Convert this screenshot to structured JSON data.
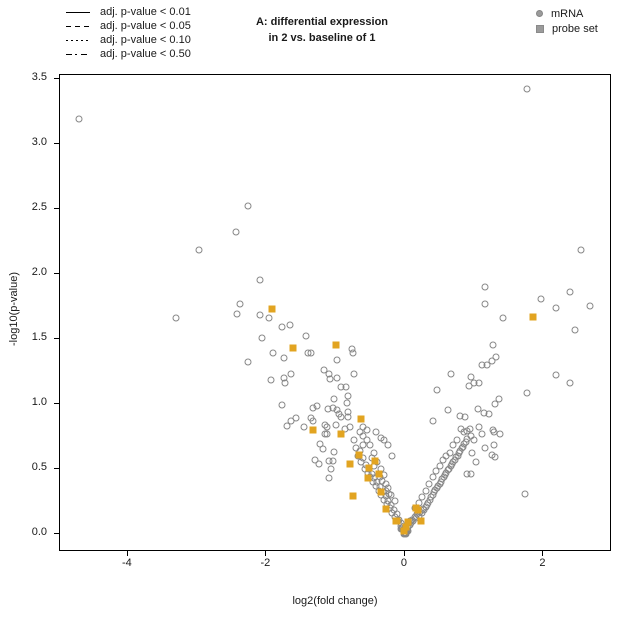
{
  "chart_data": {
    "type": "scatter",
    "title_line1": "A: differential expression",
    "title_line2": "in 2 vs. baseline of 1",
    "xlabel": "log2(fold change)",
    "ylabel": "-log10(p-value)",
    "xlim": [
      -4.98,
      2.99
    ],
    "ylim": [
      -0.14,
      3.53
    ],
    "grid": false,
    "xticks": [
      -4,
      -2,
      0,
      2
    ],
    "xtick_labels": [
      "-4",
      "-2",
      "0",
      "2"
    ],
    "yticks": [
      0,
      0.5,
      1,
      1.5,
      2,
      2.5,
      3,
      3.5
    ],
    "ytick_labels": [
      "0.0",
      "0.5",
      "1.0",
      "1.5",
      "2.0",
      "2.5",
      "3.0",
      "3.5"
    ],
    "colors": {
      "mrna_stroke": "#878787",
      "probe_fill": "#e2a421",
      "legend_gray": "#9b9b9b"
    },
    "line_legend": [
      {
        "style": "solid",
        "label": "adj. p-value < 0.01"
      },
      {
        "style": "dashed",
        "label": "adj. p-value < 0.05"
      },
      {
        "style": "dotted",
        "label": "adj. p-value < 0.10"
      },
      {
        "style": "dashdot",
        "label": "adj. p-value < 0.50"
      }
    ],
    "point_legend": [
      {
        "marker": "circle",
        "label": "mRNA"
      },
      {
        "marker": "square",
        "label": "probe set"
      }
    ],
    "series": [
      {
        "name": "mRNA",
        "marker": "circle",
        "points": [
          [
            -4.7,
            3.19
          ],
          [
            1.76,
            3.42
          ],
          [
            -2.27,
            2.52
          ],
          [
            -2.44,
            2.32
          ],
          [
            -2.97,
            2.18
          ],
          [
            2.54,
            2.18
          ],
          [
            -2.09,
            1.95
          ],
          [
            1.16,
            1.9
          ],
          [
            2.38,
            1.86
          ],
          [
            1.96,
            1.81
          ],
          [
            2.67,
            1.75
          ],
          [
            2.18,
            1.74
          ],
          [
            1.16,
            1.77
          ],
          [
            -3.3,
            1.66
          ],
          [
            1.41,
            1.66
          ],
          [
            2.45,
            1.57
          ],
          [
            1.73,
            0.31
          ],
          [
            -2.38,
            1.77
          ],
          [
            -2.42,
            1.69
          ],
          [
            -2.09,
            1.68
          ],
          [
            -1.96,
            1.66
          ],
          [
            -1.77,
            1.59
          ],
          [
            -1.66,
            1.61
          ],
          [
            -2.07,
            1.51
          ],
          [
            -1.43,
            1.52
          ],
          [
            -1.91,
            1.39
          ],
          [
            -1.74,
            1.35
          ],
          [
            -1.4,
            1.39
          ],
          [
            -1.36,
            1.39
          ],
          [
            -0.98,
            1.34
          ],
          [
            -0.77,
            1.42
          ],
          [
            -0.75,
            1.39
          ],
          [
            -2.26,
            1.32
          ],
          [
            -1.17,
            1.26
          ],
          [
            -1.09,
            1.23
          ],
          [
            -1.64,
            1.23
          ],
          [
            -1.75,
            1.2
          ],
          [
            -1.93,
            1.18
          ],
          [
            -1.73,
            1.16
          ],
          [
            -1.08,
            1.19
          ],
          [
            -0.98,
            1.2
          ],
          [
            -0.73,
            1.23
          ],
          [
            -0.92,
            1.13
          ],
          [
            -0.85,
            1.13
          ],
          [
            -0.82,
            1.06
          ],
          [
            -1.02,
            1.04
          ],
          [
            -1.78,
            0.99
          ],
          [
            -1.33,
            0.97
          ],
          [
            -1.27,
            0.98
          ],
          [
            -1.11,
            0.96
          ],
          [
            -1.04,
            0.97
          ],
          [
            -0.98,
            0.95
          ],
          [
            -0.83,
            1.01
          ],
          [
            -0.82,
            0.94
          ],
          [
            -0.95,
            0.92
          ],
          [
            -0.92,
            0.9
          ],
          [
            -0.82,
            0.9
          ],
          [
            -1.35,
            0.89
          ],
          [
            -1.33,
            0.87
          ],
          [
            -1.64,
            0.87
          ],
          [
            -1.57,
            0.89
          ],
          [
            -1.7,
            0.83
          ],
          [
            -1.46,
            0.82
          ],
          [
            -1.16,
            0.84
          ],
          [
            -1.12,
            0.82
          ],
          [
            -1.0,
            0.84
          ],
          [
            -0.86,
            0.81
          ],
          [
            -0.79,
            0.82
          ],
          [
            -1.16,
            0.77
          ],
          [
            -1.12,
            0.77
          ],
          [
            -1.22,
            0.69
          ],
          [
            -1.18,
            0.65
          ],
          [
            -1.02,
            0.63
          ],
          [
            -1.3,
            0.57
          ],
          [
            -1.24,
            0.54
          ],
          [
            -1.09,
            0.56
          ],
          [
            -1.04,
            0.56
          ],
          [
            -1.07,
            0.5
          ],
          [
            -1.1,
            0.43
          ],
          [
            1.27,
            1.45
          ],
          [
            1.32,
            1.36
          ],
          [
            1.12,
            1.3
          ],
          [
            1.18,
            1.3
          ],
          [
            1.26,
            1.33
          ],
          [
            0.67,
            1.23
          ],
          [
            0.96,
            1.21
          ],
          [
            0.93,
            1.14
          ],
          [
            1.0,
            1.16
          ],
          [
            1.07,
            1.16
          ],
          [
            0.47,
            1.11
          ],
          [
            2.18,
            1.22
          ],
          [
            2.38,
            1.16
          ],
          [
            1.76,
            1.08
          ],
          [
            1.36,
            1.04
          ],
          [
            1.3,
            1.0
          ],
          [
            0.62,
            0.95
          ],
          [
            1.06,
            0.96
          ],
          [
            1.14,
            0.93
          ],
          [
            1.21,
            0.92
          ],
          [
            0.8,
            0.91
          ],
          [
            0.87,
            0.9
          ],
          [
            0.41,
            0.87
          ],
          [
            0.81,
            0.81
          ],
          [
            0.94,
            0.81
          ],
          [
            1.07,
            0.82
          ],
          [
            1.27,
            0.8
          ],
          [
            1.12,
            0.77
          ],
          [
            1.29,
            0.78
          ],
          [
            1.37,
            0.77
          ],
          [
            1.16,
            0.66
          ],
          [
            1.29,
            0.68
          ],
          [
            1.26,
            0.61
          ],
          [
            1.3,
            0.59
          ],
          [
            0.89,
            0.46
          ],
          [
            0.96,
            0.46
          ],
          [
            -0.74,
            0.72
          ],
          [
            -0.7,
            0.66
          ],
          [
            -0.68,
            0.6
          ],
          [
            -0.65,
            0.64
          ],
          [
            -0.63,
            0.55
          ],
          [
            -0.6,
            0.58
          ],
          [
            -0.58,
            0.5
          ],
          [
            -0.56,
            0.53
          ],
          [
            -0.54,
            0.47
          ],
          [
            -0.52,
            0.5
          ],
          [
            -0.5,
            0.44
          ],
          [
            -0.48,
            0.46
          ],
          [
            -0.46,
            0.4
          ],
          [
            -0.44,
            0.43
          ],
          [
            -0.42,
            0.37
          ],
          [
            -0.4,
            0.4
          ],
          [
            -0.38,
            0.33
          ],
          [
            -0.36,
            0.36
          ],
          [
            -0.34,
            0.3
          ],
          [
            -0.32,
            0.32
          ],
          [
            -0.3,
            0.26
          ],
          [
            -0.28,
            0.29
          ],
          [
            -0.26,
            0.23
          ],
          [
            -0.24,
            0.25
          ],
          [
            -0.22,
            0.2
          ],
          [
            -0.2,
            0.22
          ],
          [
            -0.18,
            0.16
          ],
          [
            -0.16,
            0.18
          ],
          [
            -0.14,
            0.13
          ],
          [
            -0.12,
            0.15
          ],
          [
            -0.1,
            0.1
          ],
          [
            -0.08,
            0.11
          ],
          [
            -0.06,
            0.06
          ],
          [
            -0.05,
            0.08
          ],
          [
            -0.04,
            0.04
          ],
          [
            -0.03,
            0.05
          ],
          [
            -0.02,
            0.02
          ],
          [
            -0.01,
            0.03
          ],
          [
            -0.6,
            0.75
          ],
          [
            -0.45,
            0.62
          ],
          [
            -0.5,
            0.68
          ],
          [
            -0.35,
            0.5
          ],
          [
            -0.3,
            0.45
          ],
          [
            -0.55,
            0.72
          ],
          [
            -0.25,
            0.35
          ],
          [
            -0.4,
            0.55
          ],
          [
            -0.2,
            0.3
          ],
          [
            -0.15,
            0.25
          ],
          [
            -0.6,
            0.68
          ],
          [
            -0.44,
            0.52
          ],
          [
            -0.33,
            0.41
          ],
          [
            -0.28,
            0.38
          ],
          [
            -0.23,
            0.31
          ],
          [
            -0.65,
            0.78
          ],
          [
            -0.48,
            0.58
          ],
          [
            -0.36,
            0.44
          ],
          [
            -0.27,
            0.33
          ],
          [
            0.01,
            0.02
          ],
          [
            0.02,
            0.04
          ],
          [
            0.03,
            0.03
          ],
          [
            0.04,
            0.06
          ],
          [
            0.05,
            0.05
          ],
          [
            0.06,
            0.08
          ],
          [
            0.07,
            0.07
          ],
          [
            0.08,
            0.1
          ],
          [
            0.09,
            0.08
          ],
          [
            0.1,
            0.11
          ],
          [
            0.12,
            0.1
          ],
          [
            0.14,
            0.13
          ],
          [
            0.16,
            0.12
          ],
          [
            0.18,
            0.15
          ],
          [
            0.2,
            0.14
          ],
          [
            0.22,
            0.17
          ],
          [
            0.24,
            0.16
          ],
          [
            0.26,
            0.19
          ],
          [
            0.28,
            0.18
          ],
          [
            0.3,
            0.21
          ],
          [
            0.32,
            0.22
          ],
          [
            0.34,
            0.24
          ],
          [
            0.36,
            0.26
          ],
          [
            0.38,
            0.28
          ],
          [
            0.4,
            0.3
          ],
          [
            0.42,
            0.32
          ],
          [
            0.44,
            0.34
          ],
          [
            0.46,
            0.35
          ],
          [
            0.48,
            0.37
          ],
          [
            0.5,
            0.38
          ],
          [
            0.52,
            0.4
          ],
          [
            0.54,
            0.42
          ],
          [
            0.56,
            0.44
          ],
          [
            0.58,
            0.45
          ],
          [
            0.6,
            0.47
          ],
          [
            0.62,
            0.49
          ],
          [
            0.64,
            0.5
          ],
          [
            0.66,
            0.52
          ],
          [
            0.68,
            0.54
          ],
          [
            0.7,
            0.55
          ],
          [
            0.72,
            0.57
          ],
          [
            0.74,
            0.59
          ],
          [
            0.76,
            0.6
          ],
          [
            0.78,
            0.62
          ],
          [
            0.8,
            0.64
          ],
          [
            0.82,
            0.66
          ],
          [
            0.84,
            0.67
          ],
          [
            0.86,
            0.69
          ],
          [
            0.88,
            0.71
          ],
          [
            0.9,
            0.73
          ],
          [
            0.15,
            0.2
          ],
          [
            0.25,
            0.28
          ],
          [
            0.35,
            0.38
          ],
          [
            0.45,
            0.48
          ],
          [
            0.55,
            0.57
          ],
          [
            0.65,
            0.62
          ],
          [
            0.5,
            0.52
          ],
          [
            0.3,
            0.33
          ],
          [
            0.2,
            0.24
          ],
          [
            0.4,
            0.44
          ],
          [
            0.6,
            0.6
          ],
          [
            0.7,
            0.68
          ],
          [
            0.75,
            0.72
          ],
          [
            0.85,
            0.78
          ],
          [
            0.9,
            0.79
          ],
          [
            0.95,
            0.75
          ],
          [
            1.0,
            0.72
          ],
          [
            0.97,
            0.62
          ],
          [
            1.02,
            0.55
          ],
          [
            0.0,
            0.01
          ],
          [
            -0.01,
            0.01
          ],
          [
            0.01,
            0.0
          ],
          [
            0.02,
            0.01
          ],
          [
            -0.02,
            0.0
          ],
          [
            0.03,
            0.02
          ],
          [
            0.0,
            0.04
          ],
          [
            -0.03,
            0.03
          ],
          [
            0.05,
            0.02
          ],
          [
            -0.05,
            0.04
          ],
          [
            -0.55,
            0.8
          ],
          [
            -0.42,
            0.78
          ],
          [
            -0.6,
            0.82
          ],
          [
            -0.35,
            0.74
          ],
          [
            -0.3,
            0.72
          ],
          [
            -0.25,
            0.68
          ],
          [
            -0.18,
            0.6
          ]
        ]
      },
      {
        "name": "probe set",
        "marker": "square",
        "points": [
          [
            -1.92,
            1.73
          ],
          [
            -1.62,
            1.43
          ],
          [
            -1.0,
            1.45
          ],
          [
            1.85,
            1.67
          ],
          [
            -0.63,
            0.88
          ],
          [
            -1.33,
            0.8
          ],
          [
            -0.92,
            0.77
          ],
          [
            -0.66,
            0.61
          ],
          [
            -0.43,
            0.56
          ],
          [
            -0.8,
            0.54
          ],
          [
            -0.52,
            0.51
          ],
          [
            -0.38,
            0.46
          ],
          [
            -0.53,
            0.43
          ],
          [
            -0.35,
            0.32
          ],
          [
            -0.75,
            0.29
          ],
          [
            -0.28,
            0.19
          ],
          [
            0.19,
            0.18
          ],
          [
            0.16,
            0.2
          ],
          [
            -0.13,
            0.1
          ],
          [
            0.23,
            0.1
          ],
          [
            0.04,
            0.09
          ],
          [
            -0.11,
            0.1
          ],
          [
            0.01,
            0.05
          ],
          [
            -0.01,
            0.02
          ]
        ]
      }
    ]
  }
}
